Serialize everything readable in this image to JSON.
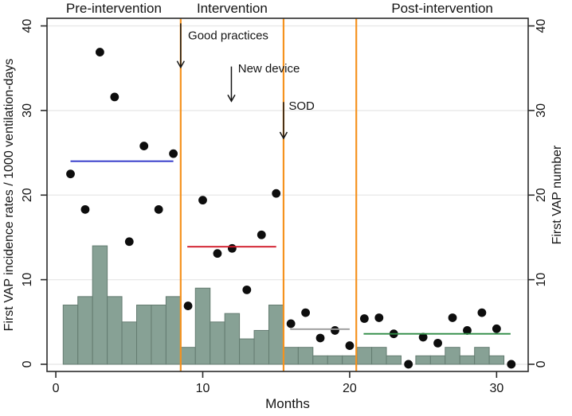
{
  "chart_data": {
    "type": "combo",
    "subtypes": [
      "scatter",
      "bar",
      "line"
    ],
    "xlabel": "Months",
    "ylabel_left": "First VAP incidence rates / 1000 ventilation-days",
    "ylabel_right": "First VAP number",
    "x_ticks": [
      0,
      10,
      20,
      30
    ],
    "y_ticks_left": [
      0,
      10,
      20,
      30,
      40
    ],
    "y_ticks_right": [
      0,
      10,
      20,
      30,
      40
    ],
    "xlim": [
      -0.6,
      32.15
    ],
    "ylim": [
      -0.85,
      40.9
    ],
    "grid": true,
    "sections": [
      {
        "label": "Pre-intervention",
        "x_from": -0.6,
        "x_to": 8.5
      },
      {
        "label": "Intervention",
        "x_from": 8.5,
        "x_to": 15.5
      },
      {
        "label": "Post-intervention",
        "x_from": 20.45,
        "x_to": 32.15
      }
    ],
    "phase_divider_x": [
      8.5,
      15.5,
      20.45
    ],
    "phase_divider_color": "#f5921e",
    "months": [
      1,
      2,
      3,
      4,
      5,
      6,
      7,
      8,
      9,
      10,
      11,
      12,
      13,
      14,
      15,
      16,
      17,
      18,
      19,
      20,
      21,
      22,
      23,
      24,
      25,
      26,
      27,
      28,
      29,
      30,
      31
    ],
    "series": [
      {
        "name": "First VAP incidence rate",
        "type": "scatter",
        "color": "#0d0d0d",
        "values": [
          22.5,
          18.3,
          36.9,
          31.6,
          14.5,
          25.8,
          18.3,
          24.9,
          6.9,
          19.4,
          13.1,
          13.7,
          8.8,
          15.3,
          20.2,
          4.8,
          6.1,
          3.1,
          4.0,
          2.2,
          5.4,
          5.5,
          3.6,
          0,
          3.2,
          2.5,
          5.5,
          4.0,
          6.1,
          4.2,
          0
        ]
      },
      {
        "name": "First VAP number",
        "type": "bar",
        "fill": "#87a195",
        "stroke": "#647c71",
        "values": [
          7,
          8,
          14,
          8,
          5,
          7,
          7,
          8,
          2,
          9,
          5,
          6,
          3,
          4,
          7,
          2,
          2,
          1,
          1,
          1,
          2,
          2,
          1,
          0,
          1,
          1,
          2,
          1,
          2,
          1,
          0
        ]
      }
    ],
    "mean_lines": [
      {
        "phase": "pre-intervention",
        "x_from": 1.0,
        "x_to": 8.0,
        "value": 24.0,
        "color": "#2d35c8"
      },
      {
        "phase": "intervention",
        "x_from": 8.95,
        "x_to": 15.0,
        "value": 13.9,
        "color": "#d11828"
      },
      {
        "phase": "post-intervention-early",
        "x_from": 15.95,
        "x_to": 20.0,
        "value": 4.15,
        "color": "#9b9b9b"
      },
      {
        "phase": "post-intervention",
        "x_from": 20.95,
        "x_to": 30.95,
        "value": 3.6,
        "color": "#2e8b45"
      }
    ],
    "annotations": [
      {
        "label": "Good practices",
        "arrow_x": 8.5,
        "arrow_value_from": 40.3,
        "arrow_value_to": 35.1,
        "label_x": 9.0,
        "label_value": 38.4
      },
      {
        "label": "New device",
        "arrow_x": 11.95,
        "arrow_value_from": 35.2,
        "arrow_value_to": 31.1,
        "label_x": 12.4,
        "label_value": 34.5
      },
      {
        "label": "SOD",
        "arrow_x": 15.5,
        "arrow_value_from": 31.0,
        "arrow_value_to": 26.7,
        "label_x": 15.85,
        "label_value": 30.1
      }
    ],
    "colors": {
      "dot": "#0d0d0d",
      "bar_fill": "#87a195",
      "bar_stroke": "#647c71",
      "divider": "#f5921e",
      "grid": "#e8e8e8",
      "frame": "#2b2b2b",
      "background": "#ffffff"
    }
  }
}
